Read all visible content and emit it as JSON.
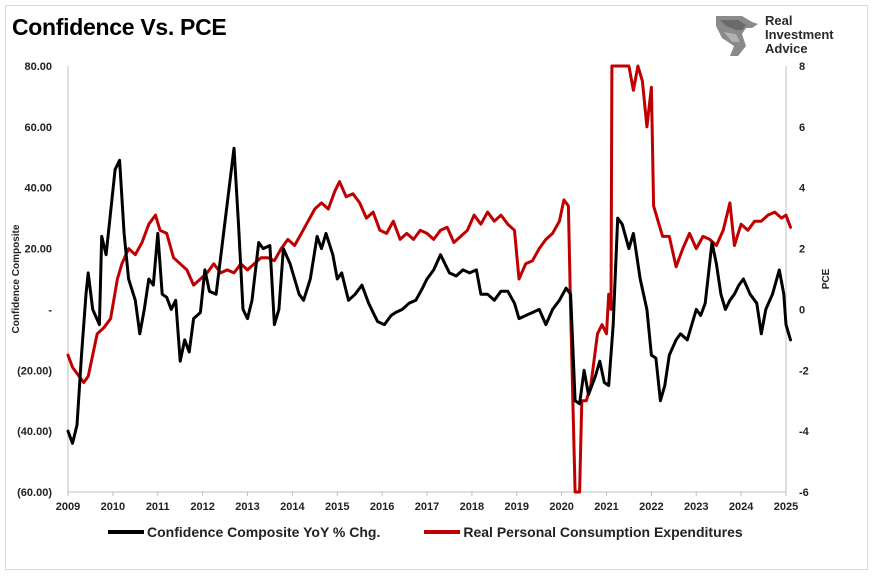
{
  "title": "Confidence Vs. PCE",
  "logo": {
    "line1": "Real",
    "line2": "Investment",
    "line3": "Advice",
    "icon": "eagle-icon"
  },
  "chart_data": {
    "type": "line",
    "title": "Confidence Vs. PCE",
    "ylabel": "Confidence Composite",
    "y2label": "PCE",
    "ylim": [
      -60,
      80
    ],
    "y2lim": [
      -6,
      8
    ],
    "xlim": [
      2009,
      2025
    ],
    "yticks": [
      "80.00",
      "60.00",
      "40.00",
      "20.00",
      "-",
      "(20.00)",
      "(40.00)",
      "(60.00)"
    ],
    "y2ticks": [
      "8",
      "6",
      "4",
      "2",
      "0",
      "-2",
      "-4",
      "-6"
    ],
    "xticks": [
      "2009",
      "2010",
      "2011",
      "2012",
      "2013",
      "2014",
      "2015",
      "2016",
      "2017",
      "2018",
      "2019",
      "2020",
      "2021",
      "2022",
      "2023",
      "2024",
      "2025"
    ],
    "grid": false,
    "legend_position": "bottom",
    "series": [
      {
        "name": "Confidence Composite YoY % Chg.",
        "color": "#000000",
        "axis": "left",
        "points": [
          [
            2009.0,
            -40
          ],
          [
            2009.1,
            -44
          ],
          [
            2009.2,
            -38
          ],
          [
            2009.3,
            -15
          ],
          [
            2009.4,
            5
          ],
          [
            2009.45,
            12
          ],
          [
            2009.55,
            0
          ],
          [
            2009.7,
            -5
          ],
          [
            2009.75,
            24
          ],
          [
            2009.85,
            18
          ],
          [
            2009.95,
            32
          ],
          [
            2010.05,
            46
          ],
          [
            2010.15,
            49
          ],
          [
            2010.25,
            25
          ],
          [
            2010.35,
            10
          ],
          [
            2010.5,
            3
          ],
          [
            2010.6,
            -8
          ],
          [
            2010.7,
            0
          ],
          [
            2010.8,
            10
          ],
          [
            2010.9,
            8
          ],
          [
            2011.0,
            25
          ],
          [
            2011.1,
            5
          ],
          [
            2011.2,
            4
          ],
          [
            2011.3,
            0
          ],
          [
            2011.4,
            3
          ],
          [
            2011.5,
            -17
          ],
          [
            2011.6,
            -10
          ],
          [
            2011.7,
            -14
          ],
          [
            2011.8,
            -3
          ],
          [
            2011.95,
            -1
          ],
          [
            2012.05,
            13
          ],
          [
            2012.15,
            6
          ],
          [
            2012.3,
            5
          ],
          [
            2012.4,
            17
          ],
          [
            2012.55,
            35
          ],
          [
            2012.7,
            53
          ],
          [
            2012.8,
            28
          ],
          [
            2012.9,
            0
          ],
          [
            2013.0,
            -3
          ],
          [
            2013.1,
            3
          ],
          [
            2013.25,
            22
          ],
          [
            2013.35,
            20
          ],
          [
            2013.5,
            21
          ],
          [
            2013.6,
            -5
          ],
          [
            2013.7,
            0
          ],
          [
            2013.8,
            20
          ],
          [
            2013.95,
            15
          ],
          [
            2014.05,
            10
          ],
          [
            2014.15,
            5
          ],
          [
            2014.25,
            3
          ],
          [
            2014.4,
            10
          ],
          [
            2014.55,
            24
          ],
          [
            2014.65,
            20
          ],
          [
            2014.75,
            25
          ],
          [
            2014.9,
            18
          ],
          [
            2015.0,
            10
          ],
          [
            2015.1,
            12
          ],
          [
            2015.25,
            3
          ],
          [
            2015.4,
            5
          ],
          [
            2015.55,
            8
          ],
          [
            2015.7,
            2
          ],
          [
            2015.8,
            -1
          ],
          [
            2015.9,
            -4
          ],
          [
            2016.05,
            -5
          ],
          [
            2016.2,
            -2
          ],
          [
            2016.3,
            -1
          ],
          [
            2016.45,
            0
          ],
          [
            2016.6,
            2
          ],
          [
            2016.75,
            3
          ],
          [
            2016.9,
            7
          ],
          [
            2017.0,
            10
          ],
          [
            2017.15,
            13
          ],
          [
            2017.3,
            18
          ],
          [
            2017.5,
            12
          ],
          [
            2017.65,
            11
          ],
          [
            2017.8,
            13
          ],
          [
            2017.95,
            12
          ],
          [
            2018.1,
            13
          ],
          [
            2018.2,
            5
          ],
          [
            2018.35,
            5
          ],
          [
            2018.5,
            3
          ],
          [
            2018.65,
            6
          ],
          [
            2018.8,
            6
          ],
          [
            2018.95,
            2
          ],
          [
            2019.05,
            -3
          ],
          [
            2019.2,
            -2
          ],
          [
            2019.35,
            -1
          ],
          [
            2019.5,
            0
          ],
          [
            2019.65,
            -5
          ],
          [
            2019.8,
            0
          ],
          [
            2019.95,
            3
          ],
          [
            2020.1,
            7
          ],
          [
            2020.2,
            5
          ],
          [
            2020.3,
            -30
          ],
          [
            2020.4,
            -31
          ],
          [
            2020.5,
            -20
          ],
          [
            2020.6,
            -28
          ],
          [
            2020.75,
            -22
          ],
          [
            2020.85,
            -17
          ],
          [
            2020.95,
            -24
          ],
          [
            2021.05,
            -25
          ],
          [
            2021.15,
            -5
          ],
          [
            2021.25,
            30
          ],
          [
            2021.35,
            28
          ],
          [
            2021.5,
            20
          ],
          [
            2021.6,
            25
          ],
          [
            2021.75,
            10
          ],
          [
            2021.9,
            0
          ],
          [
            2022.0,
            -15
          ],
          [
            2022.1,
            -16
          ],
          [
            2022.2,
            -30
          ],
          [
            2022.3,
            -25
          ],
          [
            2022.4,
            -15
          ],
          [
            2022.55,
            -10
          ],
          [
            2022.65,
            -8
          ],
          [
            2022.8,
            -10
          ],
          [
            2022.9,
            -5
          ],
          [
            2023.0,
            0
          ],
          [
            2023.1,
            -2
          ],
          [
            2023.2,
            2
          ],
          [
            2023.35,
            22
          ],
          [
            2023.45,
            15
          ],
          [
            2023.55,
            5
          ],
          [
            2023.65,
            0
          ],
          [
            2023.75,
            3
          ],
          [
            2023.85,
            5
          ],
          [
            2023.95,
            8
          ],
          [
            2024.05,
            10
          ],
          [
            2024.2,
            5
          ],
          [
            2024.35,
            2
          ],
          [
            2024.45,
            -8
          ],
          [
            2024.55,
            0
          ],
          [
            2024.7,
            5
          ],
          [
            2024.85,
            13
          ],
          [
            2024.95,
            5
          ],
          [
            2025.0,
            -5
          ],
          [
            2025.1,
            -10
          ]
        ]
      },
      {
        "name": "Real Personal Consumption Expenditures",
        "color": "#c00000",
        "axis": "right",
        "points": [
          [
            2009.0,
            -1.5
          ],
          [
            2009.1,
            -1.9
          ],
          [
            2009.25,
            -2.2
          ],
          [
            2009.35,
            -2.4
          ],
          [
            2009.45,
            -2.2
          ],
          [
            2009.55,
            -1.5
          ],
          [
            2009.65,
            -0.8
          ],
          [
            2009.8,
            -0.6
          ],
          [
            2009.95,
            -0.3
          ],
          [
            2010.1,
            1.0
          ],
          [
            2010.2,
            1.5
          ],
          [
            2010.35,
            2.0
          ],
          [
            2010.5,
            1.8
          ],
          [
            2010.65,
            2.2
          ],
          [
            2010.8,
            2.8
          ],
          [
            2010.95,
            3.1
          ],
          [
            2011.05,
            2.6
          ],
          [
            2011.2,
            2.5
          ],
          [
            2011.35,
            1.7
          ],
          [
            2011.5,
            1.5
          ],
          [
            2011.65,
            1.3
          ],
          [
            2011.8,
            0.8
          ],
          [
            2011.95,
            1.0
          ],
          [
            2012.1,
            1.2
          ],
          [
            2012.25,
            1.5
          ],
          [
            2012.4,
            1.2
          ],
          [
            2012.55,
            1.3
          ],
          [
            2012.7,
            1.2
          ],
          [
            2012.85,
            1.5
          ],
          [
            2013.0,
            1.3
          ],
          [
            2013.15,
            1.5
          ],
          [
            2013.3,
            1.7
          ],
          [
            2013.45,
            1.7
          ],
          [
            2013.6,
            1.6
          ],
          [
            2013.75,
            2.0
          ],
          [
            2013.9,
            2.3
          ],
          [
            2014.05,
            2.1
          ],
          [
            2014.2,
            2.5
          ],
          [
            2014.35,
            2.9
          ],
          [
            2014.5,
            3.3
          ],
          [
            2014.65,
            3.5
          ],
          [
            2014.8,
            3.3
          ],
          [
            2014.95,
            3.9
          ],
          [
            2015.05,
            4.2
          ],
          [
            2015.2,
            3.7
          ],
          [
            2015.35,
            3.8
          ],
          [
            2015.5,
            3.5
          ],
          [
            2015.65,
            3.0
          ],
          [
            2015.8,
            3.2
          ],
          [
            2015.95,
            2.6
          ],
          [
            2016.1,
            2.5
          ],
          [
            2016.25,
            2.9
          ],
          [
            2016.4,
            2.3
          ],
          [
            2016.55,
            2.5
          ],
          [
            2016.7,
            2.3
          ],
          [
            2016.85,
            2.6
          ],
          [
            2017.0,
            2.5
          ],
          [
            2017.15,
            2.3
          ],
          [
            2017.3,
            2.6
          ],
          [
            2017.45,
            2.7
          ],
          [
            2017.6,
            2.2
          ],
          [
            2017.75,
            2.4
          ],
          [
            2017.9,
            2.6
          ],
          [
            2018.05,
            3.1
          ],
          [
            2018.2,
            2.8
          ],
          [
            2018.35,
            3.2
          ],
          [
            2018.5,
            2.9
          ],
          [
            2018.65,
            3.1
          ],
          [
            2018.8,
            2.8
          ],
          [
            2018.95,
            2.6
          ],
          [
            2019.05,
            1.0
          ],
          [
            2019.2,
            1.5
          ],
          [
            2019.35,
            1.6
          ],
          [
            2019.5,
            2.0
          ],
          [
            2019.65,
            2.3
          ],
          [
            2019.8,
            2.5
          ],
          [
            2019.95,
            2.9
          ],
          [
            2020.05,
            3.6
          ],
          [
            2020.15,
            3.4
          ],
          [
            2020.2,
            0
          ],
          [
            2020.3,
            -6
          ],
          [
            2020.4,
            -6
          ],
          [
            2020.45,
            -3
          ],
          [
            2020.55,
            -3.0
          ],
          [
            2020.65,
            -2.5
          ],
          [
            2020.8,
            -0.8
          ],
          [
            2020.9,
            -0.5
          ],
          [
            2021.0,
            -0.8
          ],
          [
            2021.05,
            0.5
          ],
          [
            2021.1,
            0
          ],
          [
            2021.12,
            8
          ],
          [
            2021.2,
            8
          ],
          [
            2021.5,
            8
          ],
          [
            2021.6,
            7.2
          ],
          [
            2021.7,
            8
          ],
          [
            2021.8,
            7.5
          ],
          [
            2021.9,
            6.0
          ],
          [
            2022.0,
            7.3
          ],
          [
            2022.05,
            3.4
          ],
          [
            2022.15,
            2.9
          ],
          [
            2022.25,
            2.4
          ],
          [
            2022.4,
            2.4
          ],
          [
            2022.55,
            1.4
          ],
          [
            2022.7,
            2.0
          ],
          [
            2022.85,
            2.5
          ],
          [
            2023.0,
            2.0
          ],
          [
            2023.15,
            2.4
          ],
          [
            2023.3,
            2.3
          ],
          [
            2023.45,
            2.1
          ],
          [
            2023.6,
            2.6
          ],
          [
            2023.75,
            3.5
          ],
          [
            2023.85,
            2.1
          ],
          [
            2024.0,
            2.8
          ],
          [
            2024.15,
            2.6
          ],
          [
            2024.3,
            2.9
          ],
          [
            2024.45,
            2.9
          ],
          [
            2024.6,
            3.1
          ],
          [
            2024.75,
            3.2
          ],
          [
            2024.9,
            3.0
          ],
          [
            2025.0,
            3.1
          ],
          [
            2025.1,
            2.7
          ]
        ]
      }
    ]
  },
  "legend": {
    "item1": "Confidence Composite YoY % Chg.",
    "item2": "Real Personal Consumption Expenditures",
    "color1": "#000000",
    "color2": "#c00000"
  }
}
